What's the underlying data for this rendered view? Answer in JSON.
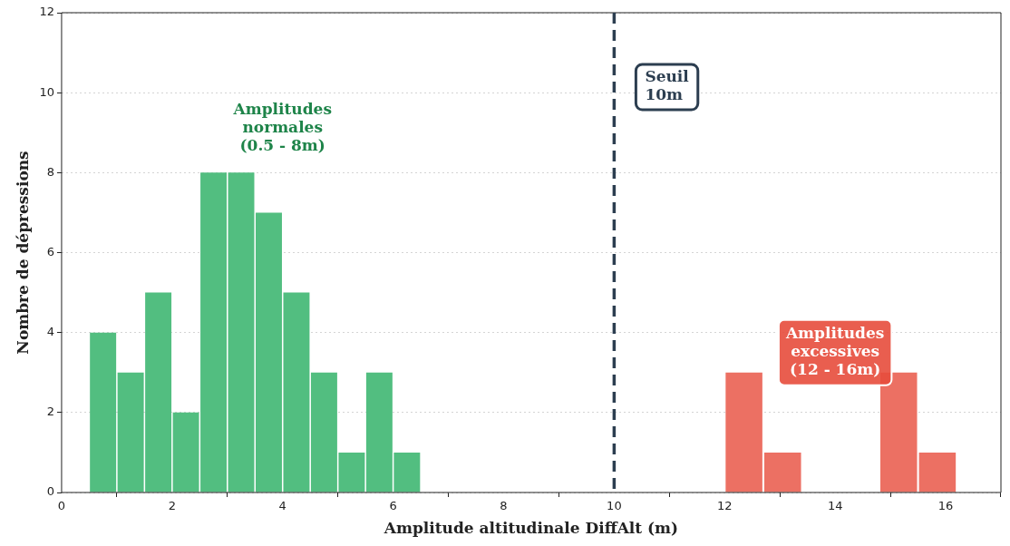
{
  "chart_data": {
    "type": "bar",
    "xlabel": "Amplitude altitudinale DiffAlt (m)",
    "ylabel": "Nombre de dépressions",
    "series": [
      {
        "color": "#52be80",
        "x": [
          0.75,
          1.25,
          1.75,
          2.25,
          2.75,
          3.25,
          3.75,
          4.25,
          4.75,
          5.25,
          5.75,
          6.25
        ],
        "values": [
          4,
          3,
          5,
          2,
          8,
          8,
          7,
          5,
          3,
          1,
          3,
          1
        ]
      },
      {
        "color": "#ec7063",
        "x": [
          12.35,
          13.05,
          13.75,
          14.45,
          15.15,
          15.85
        ],
        "values": [
          3,
          1,
          0,
          0,
          3,
          1
        ]
      }
    ],
    "xlim": [
      0,
      17
    ],
    "xticks": [
      0,
      2,
      4,
      6,
      8,
      10,
      12,
      14,
      16
    ],
    "ylim": [
      0,
      12
    ],
    "yticks": [
      0,
      2,
      4,
      6,
      8,
      10,
      12
    ],
    "grid": "y",
    "legend": false,
    "ref_lines": [
      {
        "axis": "x",
        "value": 10,
        "label": "Seuil\n10m",
        "color": "#2c3e50",
        "line_style": "dashed"
      }
    ],
    "annotations": [
      "Amplitudes\nnormales\n(0.5 - 8m)",
      "Amplitudes\nexcessives\n(12 - 16m)"
    ]
  }
}
